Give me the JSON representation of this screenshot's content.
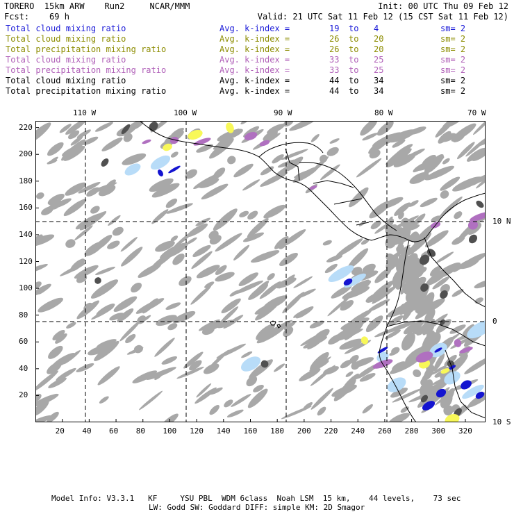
{
  "header": {
    "title": "TORERO  15km ARW    Run2     NCAR/MMM",
    "init": "Init: 00 UTC Thu 09 Feb 12",
    "fcst": "Fcst:    69 h",
    "valid": "Valid: 21 UTC Sat 11 Feb 12 (15 CST Sat 11 Feb 12)"
  },
  "legend_rows": [
    {
      "field": "Total cloud mixing ratio",
      "kindex": "Avg. k-index =",
      "from": "19",
      "to_word": "to",
      "to": "4",
      "sm": "sm= 2",
      "color": "#1a1ad8",
      "cls": "c-blue"
    },
    {
      "field": "Total cloud mixing ratio",
      "kindex": "Avg. k-index =",
      "from": "26",
      "to_word": "to",
      "to": "20",
      "sm": "sm= 2",
      "color": "#8c8c00",
      "cls": "c-olive"
    },
    {
      "field": "Total precipitation mixing ratio",
      "kindex": "Avg. k-index =",
      "from": "26",
      "to_word": "to",
      "to": "20",
      "sm": "sm= 2",
      "color": "#8c8c00",
      "cls": "c-olive"
    },
    {
      "field": "Total cloud mixing ratio",
      "kindex": "Avg. k-index =",
      "from": "33",
      "to_word": "to",
      "to": "25",
      "sm": "sm= 2",
      "color": "#b060b8",
      "cls": "c-purple"
    },
    {
      "field": "Total precipitation mixing ratio",
      "kindex": "Avg. k-index =",
      "from": "33",
      "to_word": "to",
      "to": "25",
      "sm": "sm= 2",
      "color": "#b060b8",
      "cls": "c-purple"
    },
    {
      "field": "Total cloud mixing ratio",
      "kindex": "Avg. k-index =",
      "from": "44",
      "to_word": "to",
      "to": "34",
      "sm": "sm= 2",
      "color": "#000000",
      "cls": "c-black"
    },
    {
      "field": "Total precipitation mixing ratio",
      "kindex": "Avg. k-index =",
      "from": "44",
      "to_word": "to",
      "to": "34",
      "sm": "sm= 2",
      "color": "#000000",
      "cls": "c-black"
    }
  ],
  "map": {
    "x_ticks": [
      "20",
      "40",
      "60",
      "80",
      "100",
      "120",
      "140",
      "160",
      "180",
      "200",
      "220",
      "240",
      "260",
      "280",
      "300",
      "320"
    ],
    "y_ticks": [
      "20",
      "40",
      "60",
      "80",
      "100",
      "120",
      "140",
      "160",
      "180",
      "200",
      "220"
    ],
    "lon_labels": [
      "110 W",
      "100 W",
      "90 W",
      "80 W",
      "70 W"
    ],
    "lat_labels": [
      "10 N",
      "0",
      "10 S"
    ],
    "colors": {
      "gray_cloud": "#a8a8a8",
      "dark_gray": "#505050",
      "blue": "#1414d0",
      "light_blue": "#b8dcf8",
      "yellow": "#f8f858",
      "purple": "#b070c0",
      "border": "#000000"
    }
  },
  "footer": {
    "line1": "Model Info: V3.3.1   KF     YSU PBL  WDM 6class  Noah LSM  15 km,    44 levels,    73 sec",
    "line2": "LW: Godd SW: Goddard DIFF: simple KM: 2D Smagor"
  }
}
